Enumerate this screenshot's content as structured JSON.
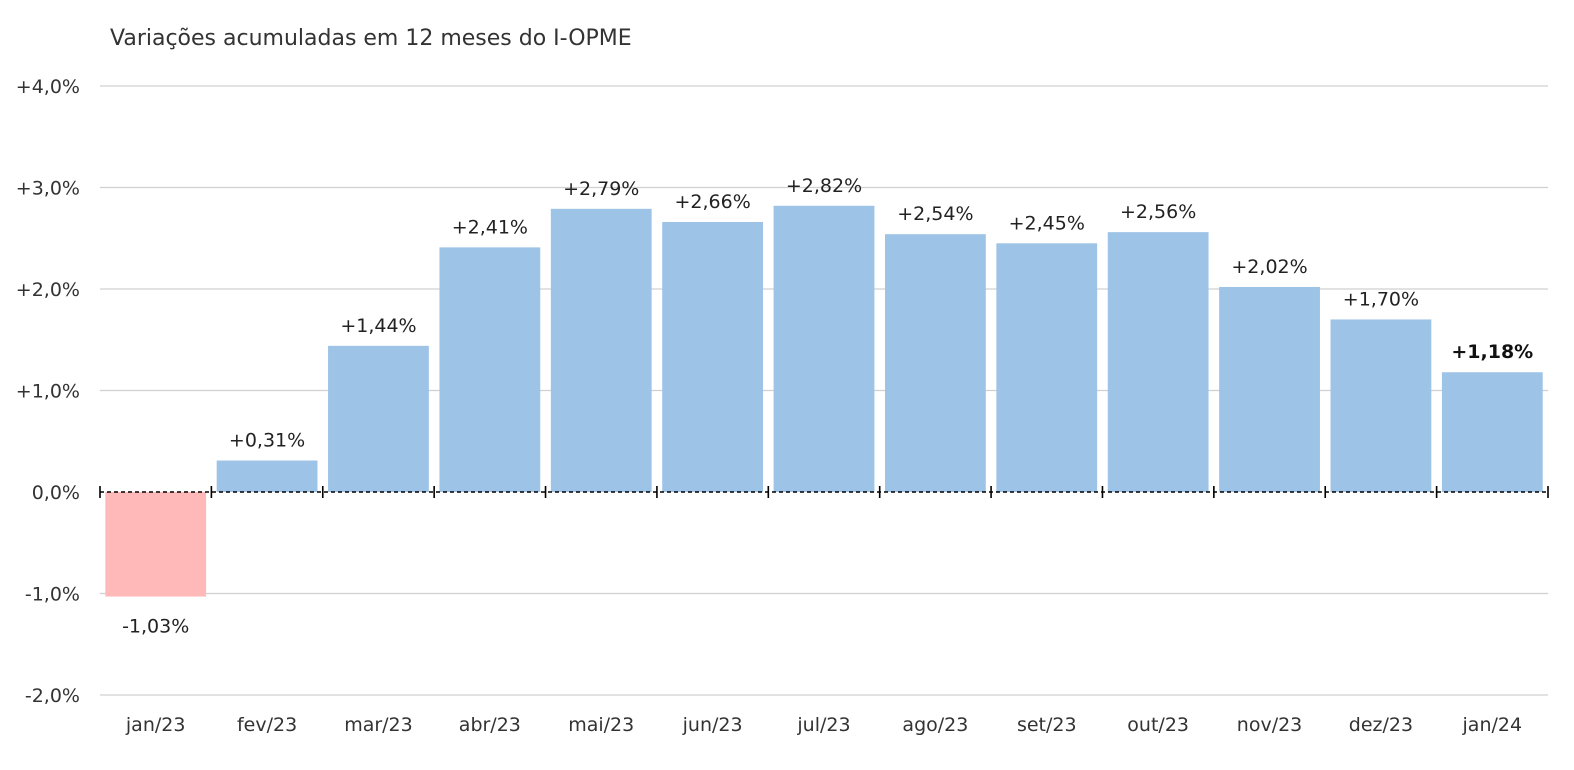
{
  "chart_data": {
    "type": "bar",
    "title": "Variações acumuladas em 12 meses do I-OPME",
    "xlabel": "",
    "ylabel": "",
    "categories": [
      "jan/23",
      "fev/23",
      "mar/23",
      "abr/23",
      "mai/23",
      "jun/23",
      "jul/23",
      "ago/23",
      "set/23",
      "out/23",
      "nov/23",
      "dez/23",
      "jan/24"
    ],
    "values": [
      -1.03,
      0.31,
      1.44,
      2.41,
      2.79,
      2.66,
      2.82,
      2.54,
      2.45,
      2.56,
      2.02,
      1.7,
      1.18
    ],
    "data_labels": [
      "-1,03%",
      "+0,31%",
      "+1,44%",
      "+2,41%",
      "+2,79%",
      "+2,66%",
      "+2,82%",
      "+2,54%",
      "+2,45%",
      "+2,56%",
      "+2,02%",
      "+1,70%",
      "+1,18%"
    ],
    "bold_label_index": 12,
    "ylim": [
      -2.0,
      4.0
    ],
    "yticks": [
      4.0,
      3.0,
      2.0,
      1.0,
      0.0,
      -1.0,
      -2.0
    ],
    "ytick_labels": [
      "+4,0%",
      "+3,0%",
      "+2,0%",
      "+1,0%",
      "0,0%",
      "-1,0%",
      "-2,0%"
    ],
    "grid": true,
    "zero_line": "dashed",
    "legend": "none",
    "colors": {
      "positive": "#9dc3e6",
      "negative": "#ffb9b9",
      "grid": "#d0d0d0",
      "axis": "#000000"
    }
  }
}
